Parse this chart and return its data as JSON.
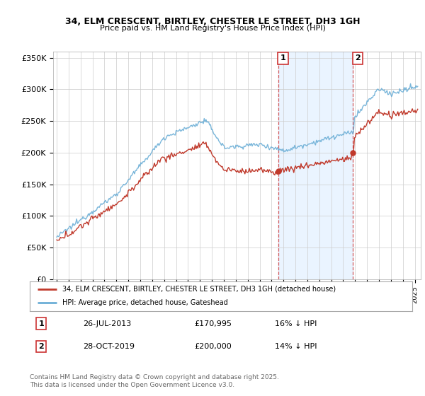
{
  "title_line1": "34, ELM CRESCENT, BIRTLEY, CHESTER LE STREET, DH3 1GH",
  "title_line2": "Price paid vs. HM Land Registry's House Price Index (HPI)",
  "ylim": [
    0,
    360000
  ],
  "yticks": [
    0,
    50000,
    100000,
    150000,
    200000,
    250000,
    300000,
    350000
  ],
  "ytick_labels": [
    "£0",
    "£50K",
    "£100K",
    "£150K",
    "£200K",
    "£250K",
    "£300K",
    "£350K"
  ],
  "xlim_start": 1994.7,
  "xlim_end": 2025.5,
  "hpi_color": "#6baed6",
  "price_color": "#c0392b",
  "marker1_date": 2013.57,
  "marker1_price": 170995,
  "marker1_label": "26-JUL-2013",
  "marker1_pct": "16% ↓ HPI",
  "marker2_date": 2019.83,
  "marker2_price": 200000,
  "marker2_label": "28-OCT-2019",
  "marker2_pct": "14% ↓ HPI",
  "legend_line1": "34, ELM CRESCENT, BIRTLEY, CHESTER LE STREET, DH3 1GH (detached house)",
  "legend_line2": "HPI: Average price, detached house, Gateshead",
  "footnote": "Contains HM Land Registry data © Crown copyright and database right 2025.\nThis data is licensed under the Open Government Licence v3.0.",
  "bg_shade_start": 2013.57,
  "bg_shade_end": 2019.83,
  "annotation1_text": "1",
  "annotation2_text": "2"
}
